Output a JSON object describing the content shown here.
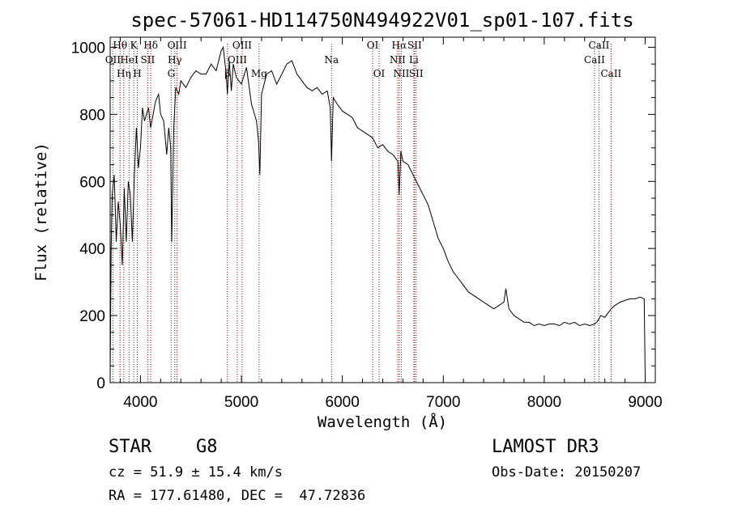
{
  "chart_data": {
    "type": "line",
    "title": "spec-57061-HD114750N494922V01_sp01-107.fits",
    "xlabel": "Wavelength (Å)",
    "ylabel": "Flux (relative)",
    "xlim": [
      3700,
      9100
    ],
    "ylim": [
      0,
      1030
    ],
    "x_ticks": [
      4000,
      5000,
      6000,
      7000,
      8000,
      9000
    ],
    "x_tick_labels": [
      "4000",
      "5000",
      "6000",
      "7000",
      "8000",
      "9000"
    ],
    "y_ticks": [
      0,
      200,
      400,
      600,
      800,
      1000
    ],
    "y_tick_labels": [
      "0",
      "200",
      "400",
      "600",
      "800",
      "1000"
    ],
    "series": [
      {
        "name": "flux",
        "x": [
          3700,
          3710,
          3720,
          3740,
          3760,
          3780,
          3800,
          3820,
          3840,
          3860,
          3880,
          3900,
          3920,
          3940,
          3960,
          3980,
          4000,
          4020,
          4040,
          4060,
          4080,
          4100,
          4120,
          4150,
          4180,
          4200,
          4230,
          4260,
          4280,
          4300,
          4310,
          4330,
          4350,
          4380,
          4400,
          4450,
          4500,
          4550,
          4600,
          4650,
          4700,
          4750,
          4800,
          4820,
          4850,
          4861,
          4880,
          4900,
          4920,
          4950,
          5000,
          5050,
          5100,
          5150,
          5170,
          5183,
          5200,
          5250,
          5300,
          5350,
          5400,
          5450,
          5500,
          5550,
          5600,
          5650,
          5700,
          5750,
          5800,
          5850,
          5880,
          5893,
          5910,
          5950,
          6000,
          6050,
          6100,
          6150,
          6200,
          6250,
          6300,
          6350,
          6400,
          6450,
          6500,
          6550,
          6563,
          6580,
          6600,
          6650,
          6700,
          6750,
          6800,
          6850,
          6900,
          6950,
          7000,
          7050,
          7100,
          7150,
          7200,
          7250,
          7300,
          7350,
          7400,
          7450,
          7500,
          7550,
          7600,
          7620,
          7650,
          7700,
          7750,
          7800,
          7850,
          7900,
          7950,
          8000,
          8050,
          8100,
          8150,
          8200,
          8250,
          8300,
          8350,
          8400,
          8450,
          8498,
          8520,
          8542,
          8560,
          8600,
          8662,
          8700,
          8750,
          8800,
          8850,
          8900,
          8950,
          8990,
          9000
        ],
        "y": [
          30,
          400,
          560,
          620,
          420,
          540,
          470,
          350,
          580,
          420,
          600,
          560,
          420,
          620,
          760,
          640,
          700,
          820,
          780,
          800,
          820,
          760,
          790,
          840,
          860,
          800,
          780,
          680,
          760,
          700,
          420,
          760,
          880,
          860,
          900,
          880,
          910,
          930,
          920,
          920,
          950,
          930,
          990,
          1000,
          920,
          860,
          960,
          870,
          950,
          910,
          890,
          940,
          830,
          780,
          720,
          620,
          860,
          920,
          930,
          890,
          920,
          950,
          960,
          920,
          900,
          880,
          870,
          880,
          860,
          870,
          820,
          660,
          850,
          830,
          810,
          800,
          790,
          760,
          750,
          740,
          730,
          700,
          710,
          690,
          680,
          660,
          560,
          690,
          660,
          650,
          620,
          590,
          560,
          530,
          480,
          430,
          400,
          360,
          330,
          310,
          290,
          270,
          260,
          250,
          240,
          230,
          220,
          230,
          240,
          280,
          220,
          200,
          190,
          180,
          180,
          170,
          175,
          170,
          175,
          175,
          170,
          180,
          175,
          180,
          170,
          175,
          170,
          175,
          180,
          190,
          200,
          195,
          220,
          230,
          240,
          245,
          250,
          250,
          255,
          250,
          20
        ]
      }
    ],
    "spectral_lines": [
      {
        "name": "Hθ",
        "x": 3798
      },
      {
        "name": "OII",
        "x": 3727
      },
      {
        "name": "K",
        "x": 3934
      },
      {
        "name": "HeI",
        "x": 3889
      },
      {
        "name": "Hη",
        "x": 3835
      },
      {
        "name": "H",
        "x": 3969
      },
      {
        "name": "SII",
        "x": 4072
      },
      {
        "name": "Hδ",
        "x": 4102
      },
      {
        "name": "OIII",
        "x": 4363
      },
      {
        "name": "Hγ",
        "x": 4340
      },
      {
        "name": "G",
        "x": 4305
      },
      {
        "name": "β",
        "x": 4861
      },
      {
        "name": "OIII",
        "x": 5007
      },
      {
        "name": "OIII",
        "x": 4959
      },
      {
        "name": "Mg",
        "x": 5175
      },
      {
        "name": "Na",
        "x": 5893
      },
      {
        "name": "OI",
        "x": 6300
      },
      {
        "name": "OI",
        "x": 6364
      },
      {
        "name": "Hα",
        "x": 6563
      },
      {
        "name": "SII",
        "x": 6716
      },
      {
        "name": "NII",
        "x": 6548
      },
      {
        "name": "Li",
        "x": 6708
      },
      {
        "name": "NII",
        "x": 6584
      },
      {
        "name": "SII",
        "x": 6731
      },
      {
        "name": "CaII",
        "x": 8542
      },
      {
        "name": "CaII",
        "x": 8498
      },
      {
        "name": "CaII",
        "x": 8662
      }
    ]
  },
  "info": {
    "object_class": "STAR",
    "subclass": "G8",
    "survey": "LAMOST DR3",
    "redshift": "cz = 51.9 ± 15.4 km/s",
    "obs_date": "Obs-Date: 20150207",
    "coordinates": "RA = 177.61480, DEC =  47.72836"
  },
  "colors": {
    "line": "#000000",
    "marker": "#cc0000"
  }
}
